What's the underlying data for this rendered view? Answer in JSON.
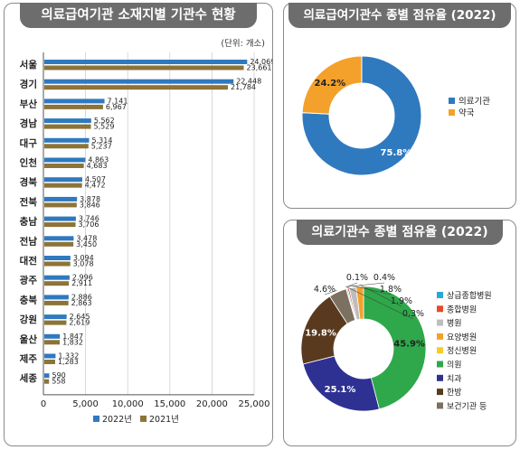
{
  "colors": {
    "bar2022": "#2f79bf",
    "bar2021": "#8c7338",
    "donut_a": "#2f79bf",
    "donut_b": "#f3a12a"
  },
  "left_panel": {
    "title": "의료급여기관 소재지별 기관수 현황",
    "unit": "(단위: 개소)"
  },
  "right_top": {
    "title": "의료급여기관수 종별 점유율 (2022)"
  },
  "right_bottom": {
    "title": "의료기관수 종별 점유율 (2022)"
  },
  "chart_data": [
    {
      "type": "bar",
      "orientation": "horizontal",
      "categories": [
        "서울",
        "경기",
        "부산",
        "경남",
        "대구",
        "인천",
        "경북",
        "전북",
        "충남",
        "전남",
        "대전",
        "광주",
        "충북",
        "강원",
        "울산",
        "제주",
        "세종"
      ],
      "series": [
        {
          "name": "2022년",
          "color": "#2f79bf",
          "values": [
            24069,
            22448,
            7141,
            5562,
            5314,
            4863,
            4507,
            3878,
            3746,
            3478,
            3094,
            2996,
            2886,
            2645,
            1847,
            1332,
            590
          ],
          "labels": [
            "24,069",
            "22,448",
            "7,141",
            "5,562",
            "5,314",
            "4,863",
            "4,507",
            "3,878",
            "3,746",
            "3,478",
            "3,094",
            "2,996",
            "2,886",
            "2,645",
            "1,847",
            "1,332",
            "590"
          ]
        },
        {
          "name": "2021년",
          "color": "#8c7338",
          "values": [
            23661,
            21784,
            6967,
            5529,
            5237,
            4683,
            4472,
            3846,
            3706,
            3450,
            3078,
            2911,
            2863,
            2619,
            1832,
            1283,
            558
          ],
          "labels": [
            "23,661",
            "21,784",
            "6,967",
            "5,529",
            "5,237",
            "4,683",
            "4,472",
            "3,846",
            "3,706",
            "3,450",
            "3,078",
            "2,911",
            "2,863",
            "2,619",
            "1,832",
            "1,283",
            "558"
          ]
        }
      ],
      "xlim": [
        0,
        25000
      ],
      "xticks": [
        0,
        5000,
        10000,
        15000,
        20000,
        25000
      ],
      "xtick_labels": [
        "0",
        "5,000",
        "10,000",
        "15,000",
        "20,000",
        "25,000"
      ],
      "legend_position": "bottom"
    },
    {
      "type": "pie",
      "donut": true,
      "slices": [
        {
          "name": "의료기관",
          "value": 75.8,
          "label": "75.8%",
          "color": "#2f79bf"
        },
        {
          "name": "약국",
          "value": 24.2,
          "label": "24.2%",
          "color": "#f3a12a"
        }
      ],
      "legend_position": "right"
    },
    {
      "type": "pie",
      "donut": true,
      "slices": [
        {
          "name": "상급종합병원",
          "value": 0.3,
          "label": "0.3%",
          "color": "#2aa7d9"
        },
        {
          "name": "종합병원",
          "value": 0.4,
          "label": "0.4%",
          "color": "#e8492a"
        },
        {
          "name": "병원",
          "value": 1.8,
          "label": "1.8%",
          "color": "#bdbdbd"
        },
        {
          "name": "요양병원",
          "value": 1.9,
          "label": "1.9%",
          "color": "#f3a12a"
        },
        {
          "name": "정신병원",
          "value": 0.1,
          "label": "0.1%",
          "color": "#f5cb2a"
        },
        {
          "name": "의원",
          "value": 45.9,
          "label": "45.9%",
          "color": "#2ea84a"
        },
        {
          "name": "치과",
          "value": 25.1,
          "label": "25.1%",
          "color": "#2e3192"
        },
        {
          "name": "한방",
          "value": 19.8,
          "label": "19.8%",
          "color": "#5a3a1e"
        },
        {
          "name": "보건기관 등",
          "value": 4.6,
          "label": "4.6%",
          "color": "#7c7060"
        }
      ],
      "legend_position": "right"
    }
  ]
}
